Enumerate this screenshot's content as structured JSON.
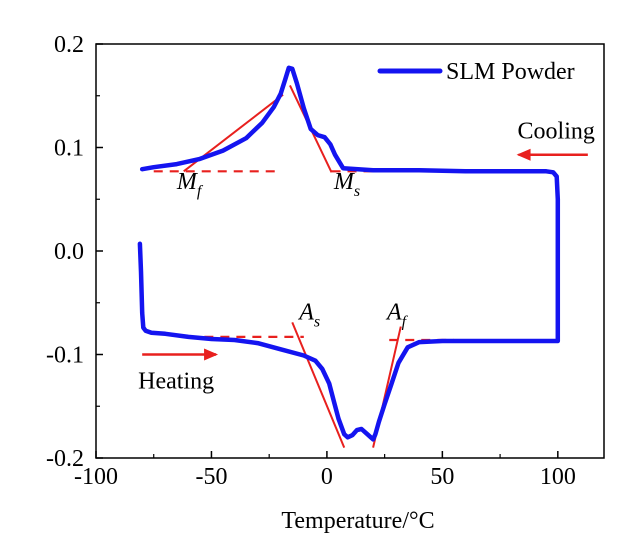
{
  "chart_data": {
    "type": "line",
    "title": "",
    "xlabel": "Temperature/°C",
    "ylabel": "",
    "xlim": [
      -100,
      120
    ],
    "ylim": [
      -0.2,
      0.2
    ],
    "xticks": [
      -100,
      -50,
      0,
      50,
      100
    ],
    "yticks": [
      -0.2,
      -0.1,
      0.0,
      0.1,
      0.2
    ],
    "xtick_labels": [
      "-100",
      "-50",
      "0",
      "50",
      "100"
    ],
    "ytick_labels": [
      "-0.2",
      "-0.1",
      "0.0",
      "0.1",
      "0.2"
    ],
    "grid": false,
    "legend": {
      "placement": "top-right"
    },
    "series": [
      {
        "name": "SLM Powder",
        "color": "#1414f0",
        "x": [
          -80,
          -75,
          -65,
          -55,
          -45,
          -35,
          -28,
          -23,
          -20,
          -18,
          -16.5,
          -15,
          -13,
          -10,
          -7,
          -4,
          -1,
          1.5,
          3.5,
          7,
          20,
          40,
          60,
          80,
          95,
          98,
          99.5,
          100,
          100,
          98,
          90,
          70,
          50,
          40,
          35,
          31,
          28,
          25,
          22.5,
          21,
          20,
          19,
          17,
          15,
          13,
          11,
          9,
          7.5,
          5,
          3,
          1,
          -2,
          -5,
          -10,
          -20,
          -30,
          -40,
          -50,
          -60,
          -70,
          -76,
          -78.5,
          -79.5,
          -80,
          -80.5,
          -81
        ],
        "y": [
          0.079,
          0.081,
          0.084,
          0.089,
          0.097,
          0.109,
          0.124,
          0.139,
          0.152,
          0.166,
          0.177,
          0.176,
          0.162,
          0.138,
          0.118,
          0.112,
          0.11,
          0.103,
          0.093,
          0.08,
          0.078,
          0.078,
          0.077,
          0.077,
          0.077,
          0.076,
          0.072,
          0.05,
          -0.087,
          -0.087,
          -0.087,
          -0.087,
          -0.087,
          -0.088,
          -0.093,
          -0.108,
          -0.128,
          -0.148,
          -0.165,
          -0.177,
          -0.182,
          -0.18,
          -0.176,
          -0.172,
          -0.173,
          -0.178,
          -0.18,
          -0.177,
          -0.162,
          -0.145,
          -0.128,
          -0.114,
          -0.106,
          -0.101,
          -0.095,
          -0.089,
          -0.086,
          -0.085,
          -0.083,
          -0.08,
          -0.079,
          -0.077,
          -0.074,
          -0.06,
          -0.02,
          0.007
        ]
      }
    ],
    "guide_lines": {
      "color": "#e8201e",
      "dashed": [
        {
          "x": [
            -75,
            -20
          ],
          "y": [
            0.077,
            0.077
          ]
        },
        {
          "x": [
            2,
            60
          ],
          "y": [
            0.077,
            0.077
          ]
        },
        {
          "x": [
            -60,
            -10
          ],
          "y": [
            -0.083,
            -0.083
          ]
        },
        {
          "x": [
            27,
            55
          ],
          "y": [
            -0.086,
            -0.086
          ]
        }
      ],
      "solid": [
        {
          "x": [
            -62,
            -19
          ],
          "y": [
            0.077,
            0.151
          ]
        },
        {
          "x": [
            -16,
            2
          ],
          "y": [
            0.16,
            0.076
          ]
        },
        {
          "x": [
            -15,
            7.5
          ],
          "y": [
            -0.069,
            -0.19
          ]
        },
        {
          "x": [
            20,
            32
          ],
          "y": [
            -0.19,
            -0.073
          ]
        }
      ]
    },
    "annotations": [
      {
        "main": "M",
        "sub": "f",
        "x": -65,
        "y": 0.06
      },
      {
        "main": "M",
        "sub": "s",
        "x": 3,
        "y": 0.06
      },
      {
        "main": "A",
        "sub": "s",
        "x": -12,
        "y": -0.066
      },
      {
        "main": "A",
        "sub": "f",
        "x": 26,
        "y": -0.066
      }
    ],
    "arrows": [
      {
        "label": "Cooling",
        "direction": "left",
        "color": "#e8201e",
        "y": 0.093,
        "x_from": 113,
        "x_to": 83
      },
      {
        "label": "Heating",
        "direction": "right",
        "color": "#e8201e",
        "y": -0.1,
        "x_from": -80,
        "x_to": -48
      }
    ]
  }
}
